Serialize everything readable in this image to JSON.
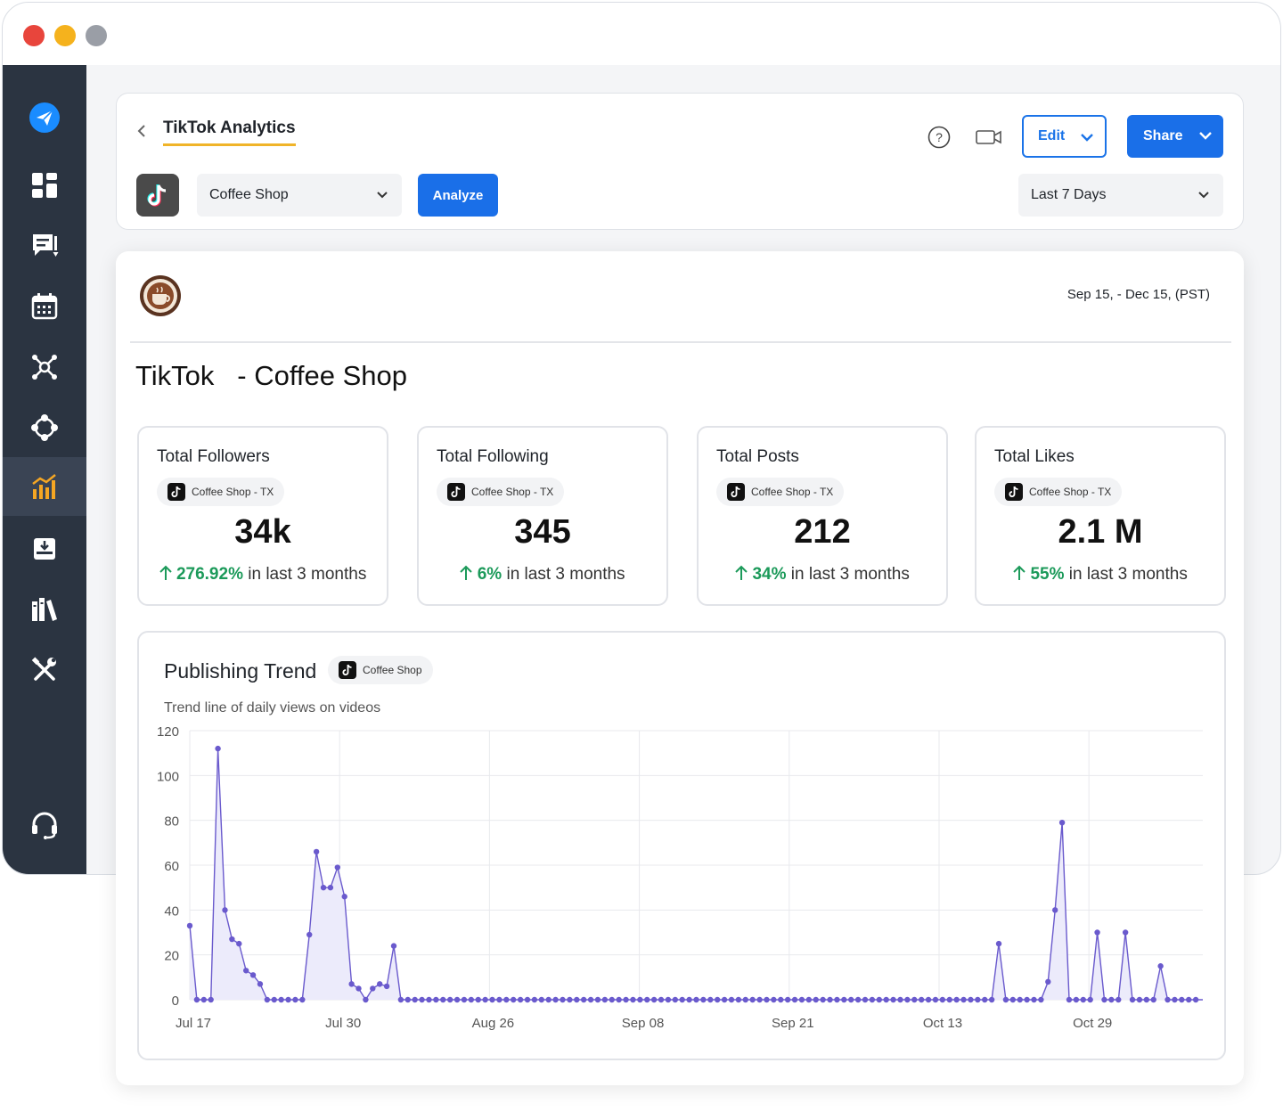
{
  "header": {
    "title": "TikTok Analytics",
    "edit_label": "Edit",
    "share_label": "Share",
    "analyze_label": "Analyze",
    "account_select": "Coffee Shop",
    "range_select": "Last 7 Days"
  },
  "report": {
    "date_range": "Sep 15, - Dec 15,  (PST)",
    "title": "TikTok   - Coffee Shop"
  },
  "stats": [
    {
      "label": "Total Followers",
      "chip": "Coffee Shop - TX",
      "value": "34k",
      "pct": "276.92%",
      "suffix": " in last 3 months"
    },
    {
      "label": "Total Following",
      "chip": "Coffee Shop - TX",
      "value": "345",
      "pct": "6%",
      "suffix": " in last 3 months"
    },
    {
      "label": "Total Posts",
      "chip": "Coffee Shop - TX",
      "value": "212",
      "pct": "34%",
      "suffix": " in last 3 months"
    },
    {
      "label": "Total Likes",
      "chip": "Coffee Shop - TX",
      "value": "2.1 M",
      "pct": "55%",
      "suffix": " in last 3 months"
    }
  ],
  "trend": {
    "title": "Publishing Trend",
    "chip": "Coffee Shop",
    "subtitle": "Trend line of daily views on videos"
  },
  "colors": {
    "accent": "#1a6fe8",
    "positive": "#1c9a5a",
    "series": "#6a5acd",
    "series_fill": "#ecebfb"
  },
  "chart_data": {
    "type": "area",
    "ylim": [
      0,
      120
    ],
    "yticks": [
      0,
      20,
      40,
      60,
      80,
      100,
      120
    ],
    "xtick_labels": [
      "Jul 17",
      "Jul 30",
      "Aug 26",
      "Sep 08",
      "Sep 21",
      "Oct 13",
      "Oct 29"
    ],
    "n_points": 145,
    "series": [
      {
        "values": [
          33,
          0,
          0,
          0,
          112,
          40,
          27,
          25,
          13,
          11,
          7,
          0,
          0,
          0,
          0,
          0,
          0,
          29,
          66,
          50,
          50,
          59,
          46,
          7,
          5,
          0,
          5,
          7,
          6,
          24,
          0,
          0,
          0,
          0,
          0,
          0,
          0,
          0,
          0,
          0,
          0,
          0,
          0,
          0,
          0,
          0,
          0,
          0,
          0,
          0,
          0,
          0,
          0,
          0,
          0,
          0,
          0,
          0,
          0,
          0,
          0,
          0,
          0,
          0,
          0,
          0,
          0,
          0,
          0,
          0,
          0,
          0,
          0,
          0,
          0,
          0,
          0,
          0,
          0,
          0,
          0,
          0,
          0,
          0,
          0,
          0,
          0,
          0,
          0,
          0,
          0,
          0,
          0,
          0,
          0,
          0,
          0,
          0,
          0,
          0,
          0,
          0,
          0,
          0,
          0,
          0,
          0,
          0,
          0,
          0,
          0,
          0,
          0,
          0,
          0,
          25,
          0,
          0,
          0,
          0,
          0,
          0,
          8,
          40,
          79,
          0,
          0,
          0,
          0,
          30,
          0,
          0,
          0,
          30,
          0,
          0,
          0,
          0,
          15,
          0,
          0,
          0,
          0,
          0,
          0
        ]
      }
    ]
  }
}
